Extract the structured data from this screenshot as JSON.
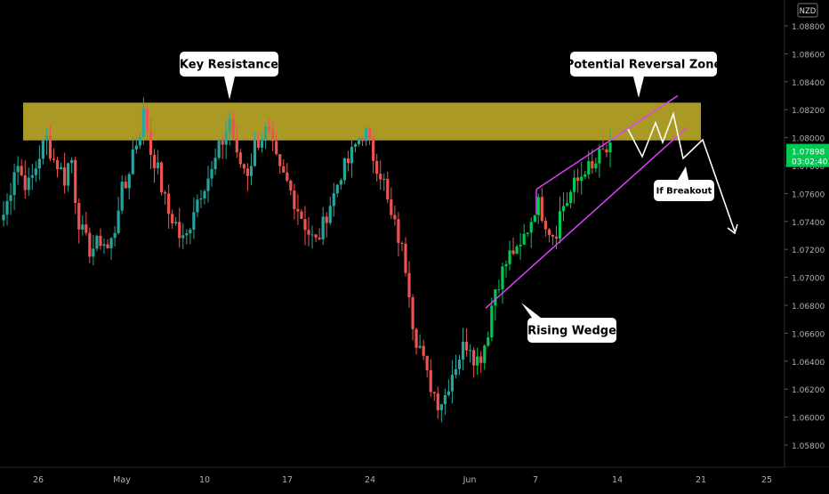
{
  "chart_data": {
    "type": "candlestick",
    "currency": "NZD",
    "colors": {
      "background": "#000000",
      "bull": "#26a69a",
      "bull_bright": "#00c853",
      "bear": "#ef5350",
      "resistance_zone": "#c9b42c",
      "wedge_lines": "#e040fb",
      "projection": "#ffffff",
      "axis_text": "#b0b0b0",
      "last_price_bg": "#00c853"
    },
    "y_axis": {
      "range": [
        1.057,
        1.09
      ],
      "ticks": [
        "1.05800",
        "1.06000",
        "1.06200",
        "1.06400",
        "1.06600",
        "1.06800",
        "1.07000",
        "1.07200",
        "1.07400",
        "1.07600",
        "1.07800",
        "1.08000",
        "1.08200",
        "1.08400",
        "1.08600",
        "1.08800"
      ]
    },
    "x_axis": {
      "ticks": [
        "26",
        "May",
        "10",
        "17",
        "24",
        "Jun",
        "7",
        "14",
        "21",
        "25"
      ]
    },
    "last_price": {
      "value": "1.07898",
      "countdown": "03:02:40"
    },
    "annotations": {
      "key_resistance": "Key Resistance",
      "potential_reversal_zone": "Potential Reversal Zone",
      "rising_wedge": "Rising Wedge",
      "if_breakout": "If Breakout"
    },
    "resistance_zone": {
      "low": 1.0798,
      "high": 1.0825
    },
    "price_path": [
      [
        1.0745,
        1.076
      ],
      [
        1.0785,
        1.0772
      ],
      [
        1.0765,
        1.0775
      ],
      [
        1.079,
        1.08
      ],
      [
        1.0785,
        1.078
      ],
      [
        1.077,
        1.079
      ],
      [
        1.0745,
        1.073
      ],
      [
        1.072,
        1.0722
      ],
      [
        1.0728,
        1.072
      ],
      [
        1.073,
        1.076
      ],
      [
        1.0765,
        1.079
      ],
      [
        1.08,
        1.082
      ],
      [
        1.079,
        1.078
      ],
      [
        1.076,
        1.0745
      ],
      [
        1.074,
        1.0725
      ],
      [
        1.073,
        1.075
      ],
      [
        1.076,
        1.077
      ],
      [
        1.0775,
        1.079
      ],
      [
        1.08,
        1.0815
      ],
      [
        1.0785,
        1.078
      ],
      [
        1.0775,
        1.0795
      ],
      [
        1.08,
        1.0805
      ],
      [
        1.079,
        1.0775
      ],
      [
        1.077,
        1.076
      ],
      [
        1.075,
        1.074
      ],
      [
        1.073,
        1.0725
      ],
      [
        1.0735,
        1.075
      ],
      [
        1.076,
        1.0775
      ],
      [
        1.078,
        1.079
      ],
      [
        1.08,
        1.0805
      ],
      [
        1.079,
        1.078
      ],
      [
        1.077,
        1.0745
      ],
      [
        1.0735,
        1.072
      ],
      [
        1.07,
        1.066
      ],
      [
        1.065,
        1.063
      ],
      [
        1.062,
        1.061
      ],
      [
        1.0615,
        1.063
      ],
      [
        1.064,
        1.065
      ],
      [
        1.0655,
        1.064
      ],
      [
        1.0645,
        1.066
      ],
      [
        1.069,
        1.07
      ],
      [
        1.071,
        1.072
      ],
      [
        1.0715,
        1.073
      ],
      [
        1.074,
        1.0755
      ],
      [
        1.0745,
        1.0735
      ],
      [
        1.073,
        1.075
      ],
      [
        1.0755,
        1.0765
      ],
      [
        1.077,
        1.078
      ],
      [
        1.0775,
        1.0785
      ],
      [
        1.079,
        1.079
      ]
    ]
  }
}
